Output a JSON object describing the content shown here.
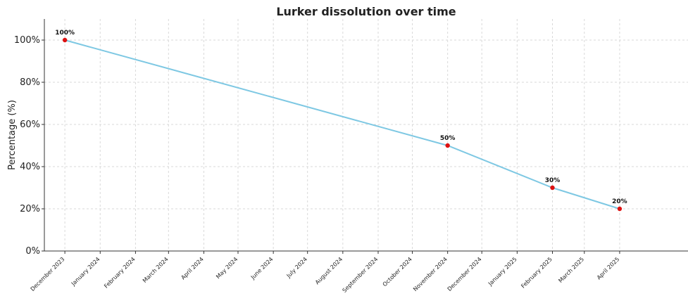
{
  "chart_data": {
    "type": "line",
    "title": "Lurker dissolution over time",
    "xlabel": "",
    "ylabel": "Percentage (%)",
    "ylim": [
      0,
      110
    ],
    "yticks": [
      {
        "value": 0,
        "label": "0%"
      },
      {
        "value": 20,
        "label": "20%"
      },
      {
        "value": 40,
        "label": "40%"
      },
      {
        "value": 60,
        "label": "60%"
      },
      {
        "value": 80,
        "label": "80%"
      },
      {
        "value": 100,
        "label": "100%"
      }
    ],
    "xticks": [
      "December 2023",
      "January 2024",
      "February 2024",
      "March 2024",
      "April 2024",
      "May 2024",
      "June 2024",
      "July 2024",
      "August 2024",
      "September 2024",
      "October 2024",
      "November 2024",
      "December 2024",
      "January 2025",
      "February 2025",
      "March 2025",
      "April 2025"
    ],
    "x_range": [
      "2023-11-13",
      "2025-05-31"
    ],
    "grid": true,
    "line_color": "#7ec8e3",
    "marker_color": "#dd1111",
    "series": [
      {
        "points": [
          {
            "x": "2023-12",
            "y": 100,
            "label": "100%"
          },
          {
            "x": "2024-11",
            "y": 50,
            "label": "50%"
          },
          {
            "x": "2025-02",
            "y": 30,
            "label": "30%"
          },
          {
            "x": "2025-04",
            "y": 20,
            "label": "20%"
          }
        ]
      }
    ]
  }
}
